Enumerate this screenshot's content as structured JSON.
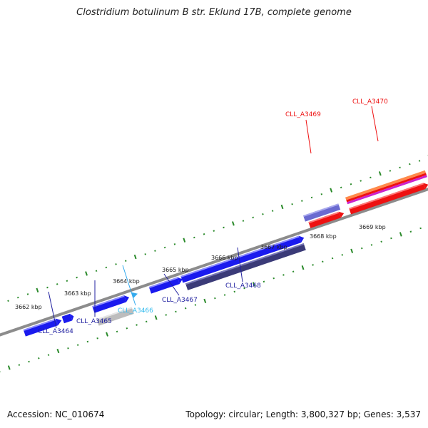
{
  "title": "Clostridium botulinum B str. Eklund 17B, complete genome",
  "footer": {
    "accession": "Accession: NC_010674",
    "summary": "Topology: circular; Length: 3,800,327 bp; Genes: 3,537"
  },
  "colors": {
    "forward_gene": "#1a1aee",
    "reverse_gene": "#ee1111",
    "selected_gene_light": "#6a6ad0",
    "selected_gene_dark": "#3b3b78",
    "pseudo_gene": "#bdbdbd",
    "small_gene": "#33aaee",
    "tick": "#2a8a2a",
    "backbone": "#8c8c8c"
  },
  "scale_labels": [
    "3662 kbp",
    "3663 kbp",
    "3664 kbp",
    "3665 kbp",
    "3666 kbp",
    "3667 kbp",
    "3668 kbp",
    "3669 kbp"
  ],
  "gene_labels": {
    "g3464": "CLL_A3464",
    "g3465": "CLL_A3465",
    "g3466": "CLL_A3466",
    "g3467": "CLL_A3467",
    "g3468": "CLL_A3468",
    "g3469": "CLL_A3469",
    "g3470": "CLL_A3470"
  }
}
